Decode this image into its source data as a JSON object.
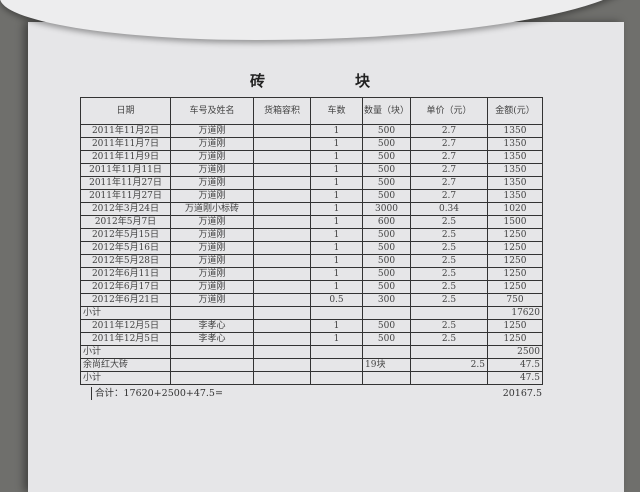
{
  "title": [
    "砖",
    "块"
  ],
  "headers": [
    "日期",
    "车号及姓名",
    "货箱容积",
    "车数",
    "数量（块）",
    "单价（元）",
    "金额(元）"
  ],
  "rows": [
    {
      "type": "item",
      "date": "2011年11月2日",
      "name": "万道刚",
      "volume": "",
      "trucks": "1",
      "qty": "500",
      "price": "2.7",
      "amount": "1350"
    },
    {
      "type": "item",
      "date": "2011年11月7日",
      "name": "万道刚",
      "volume": "",
      "trucks": "1",
      "qty": "500",
      "price": "2.7",
      "amount": "1350"
    },
    {
      "type": "item",
      "date": "2011年11月9日",
      "name": "万道刚",
      "volume": "",
      "trucks": "1",
      "qty": "500",
      "price": "2.7",
      "amount": "1350"
    },
    {
      "type": "item",
      "date": "2011年11月11日",
      "name": "万道刚",
      "volume": "",
      "trucks": "1",
      "qty": "500",
      "price": "2.7",
      "amount": "1350"
    },
    {
      "type": "item",
      "date": "2011年11月27日",
      "name": "万道刚",
      "volume": "",
      "trucks": "1",
      "qty": "500",
      "price": "2.7",
      "amount": "1350"
    },
    {
      "type": "item",
      "date": "2011年11月27日",
      "name": "万道刚",
      "volume": "",
      "trucks": "1",
      "qty": "500",
      "price": "2.7",
      "amount": "1350"
    },
    {
      "type": "item",
      "date": "2012年3月24日",
      "name": "万道刚小标砖",
      "volume": "",
      "trucks": "1",
      "qty": "3000",
      "price": "0.34",
      "amount": "1020"
    },
    {
      "type": "item",
      "date": "2012年5月7日",
      "name": "万道刚",
      "volume": "",
      "trucks": "1",
      "qty": "600",
      "price": "2.5",
      "amount": "1500"
    },
    {
      "type": "item",
      "date": "2012年5月15日",
      "name": "万道刚",
      "volume": "",
      "trucks": "1",
      "qty": "500",
      "price": "2.5",
      "amount": "1250"
    },
    {
      "type": "item",
      "date": "2012年5月16日",
      "name": "万道刚",
      "volume": "",
      "trucks": "1",
      "qty": "500",
      "price": "2.5",
      "amount": "1250"
    },
    {
      "type": "item",
      "date": "2012年5月28日",
      "name": "万道刚",
      "volume": "",
      "trucks": "1",
      "qty": "500",
      "price": "2.5",
      "amount": "1250"
    },
    {
      "type": "item",
      "date": "2012年6月11日",
      "name": "万道刚",
      "volume": "",
      "trucks": "1",
      "qty": "500",
      "price": "2.5",
      "amount": "1250"
    },
    {
      "type": "item",
      "date": "2012年6月17日",
      "name": "万道刚",
      "volume": "",
      "trucks": "1",
      "qty": "500",
      "price": "2.5",
      "amount": "1250"
    },
    {
      "type": "item",
      "date": "2012年6月21日",
      "name": "万道刚",
      "volume": "",
      "trucks": "0.5",
      "qty": "300",
      "price": "2.5",
      "amount": "750"
    },
    {
      "type": "subtotal",
      "date": "小计",
      "name": "",
      "volume": "",
      "trucks": "",
      "qty": "",
      "price": "",
      "amount": "17620"
    },
    {
      "type": "item",
      "date": "2011年12月5日",
      "name": "李孝心",
      "volume": "",
      "trucks": "1",
      "qty": "500",
      "price": "2.5",
      "amount": "1250"
    },
    {
      "type": "item",
      "date": "2011年12月5日",
      "name": "李孝心",
      "volume": "",
      "trucks": "1",
      "qty": "500",
      "price": "2.5",
      "amount": "1250"
    },
    {
      "type": "subtotal",
      "date": "小计",
      "name": "",
      "volume": "",
      "trucks": "",
      "qty": "",
      "price": "",
      "amount": "2500"
    },
    {
      "type": "subtotal",
      "date": "余尚红大砖",
      "name": "",
      "volume": "",
      "trucks": "",
      "qty": "19块",
      "price": "2.5",
      "amount": "47.5"
    },
    {
      "type": "subtotal",
      "date": "小计",
      "name": "",
      "volume": "",
      "trucks": "",
      "qty": "",
      "price": "",
      "amount": "47.5"
    }
  ],
  "total": {
    "label": "合计：17620+2500+47.5=",
    "value": "20167.5"
  }
}
